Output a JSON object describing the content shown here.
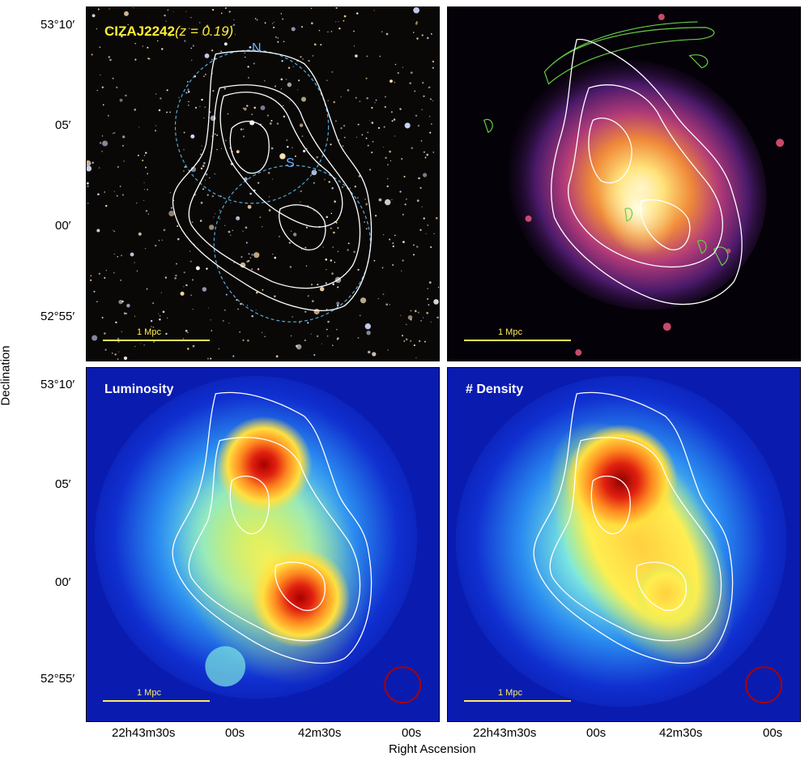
{
  "panels": {
    "top_left": {
      "title_main": "CIZAJ2242",
      "title_z": "(z = 0.19)",
      "label_n": "N",
      "label_s": "S",
      "scale": "1 Mpc"
    },
    "top_right": {
      "scale": "1 Mpc"
    },
    "bottom_left": {
      "title": "Luminosity",
      "scale": "1 Mpc"
    },
    "bottom_right": {
      "title": "# Density",
      "scale": "1 Mpc"
    }
  },
  "axes": {
    "y_title": "Declination",
    "x_title": "Right Ascension",
    "y_ticks_top": [
      "53°10′",
      "05′",
      "00′",
      "52°55′"
    ],
    "y_ticks_bottom": [
      "53°10′",
      "05′",
      "00′",
      "52°55′"
    ],
    "x_ticks_left": [
      "22h43m30s",
      "00s",
      "42m30s",
      "00s"
    ],
    "x_ticks_right": [
      "22h43m30s",
      "00s",
      "42m30s",
      "00s"
    ]
  },
  "colors": {
    "contour": "#ffffff",
    "radio_contour": "#66cc44",
    "title_yellow": "#ffee33",
    "circle_blue": "#55aadd",
    "beam_circle": "#aa0000"
  }
}
